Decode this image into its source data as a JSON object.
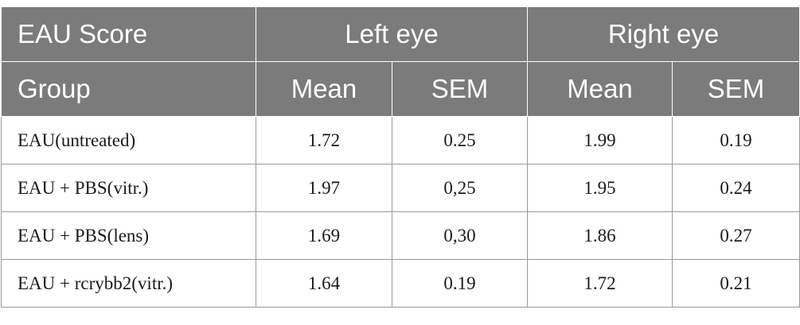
{
  "table": {
    "header_row1": {
      "label": "EAU Score",
      "left_eye": "Left eye",
      "right_eye": "Right eye"
    },
    "header_row2": {
      "group": "Group",
      "left_mean": "Mean",
      "left_sem": "SEM",
      "right_mean": "Mean",
      "right_sem": "SEM"
    },
    "rows": [
      {
        "group": "EAU(untreated)",
        "left_mean": "1.72",
        "left_sem": "0.25",
        "right_mean": "1.99",
        "right_sem": "0.19"
      },
      {
        "group": "EAU + PBS(vitr.)",
        "left_mean": "1.97",
        "left_sem": "0,25",
        "right_mean": "1.95",
        "right_sem": "0.24"
      },
      {
        "group": "EAU + PBS(lens)",
        "left_mean": "1.69",
        "left_sem": "0,30",
        "right_mean": "1.86",
        "right_sem": "0.27"
      },
      {
        "group": "EAU + rcrybb2(vitr.)",
        "left_mean": "1.64",
        "left_sem": "0.19",
        "right_mean": "1.72",
        "right_sem": "0.21"
      }
    ]
  }
}
